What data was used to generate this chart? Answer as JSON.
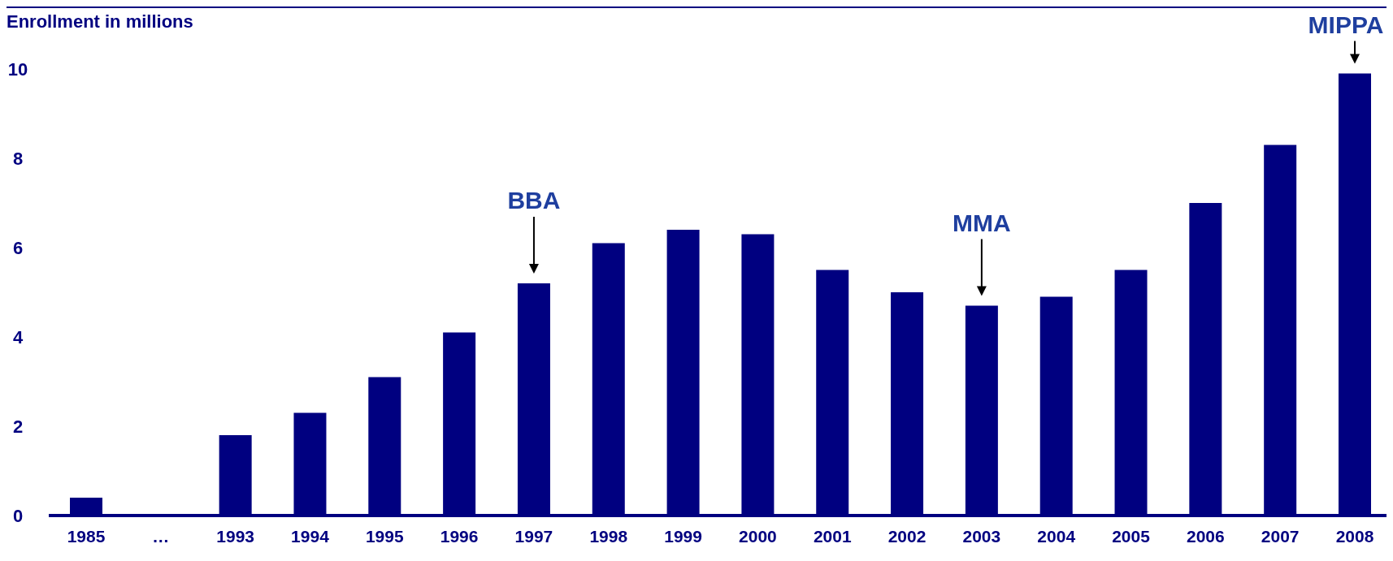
{
  "chart_data": {
    "type": "bar",
    "ylabel": "Enrollment in millions",
    "categories": [
      "1985",
      "…",
      "1993",
      "1994",
      "1995",
      "1996",
      "1997",
      "1998",
      "1999",
      "2000",
      "2001",
      "2002",
      "2003",
      "2004",
      "2005",
      "2006",
      "2007",
      "2008"
    ],
    "values": [
      0.4,
      null,
      1.8,
      2.3,
      3.1,
      4.1,
      5.2,
      6.1,
      6.4,
      6.3,
      5.5,
      5.0,
      4.7,
      4.9,
      5.5,
      7.0,
      8.3,
      9.9
    ],
    "color": "#000080",
    "ylim": [
      0,
      10
    ],
    "yticks": [
      0,
      2,
      4,
      6,
      8,
      10
    ],
    "grid": false,
    "annotations": [
      {
        "text": "BBA",
        "x": "1997",
        "y": 5.2
      },
      {
        "text": "MMA",
        "x": "2003",
        "y": 4.7
      },
      {
        "text": "MIPPA",
        "x": "2008",
        "y": 9.9
      }
    ]
  }
}
